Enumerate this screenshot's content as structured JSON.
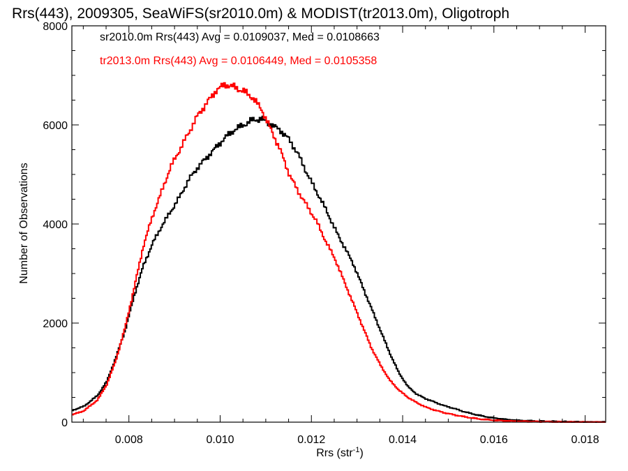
{
  "chart_data": {
    "type": "line",
    "title": "Rrs(443), 2009305, SeaWiFS(sr2010.0m) & MODIST(tr2013.0m), Oligotroph",
    "xlabel_base": "Rrs (str",
    "xlabel_sup": "-1",
    "xlabel_close": ")",
    "ylabel": "Number of Observations",
    "xlim": [
      0.00675,
      0.01845
    ],
    "ylim": [
      0,
      8000
    ],
    "x_ticks": [
      "0.008",
      "0.010",
      "0.012",
      "0.014",
      "0.016",
      "0.018"
    ],
    "x_tick_values": [
      0.008,
      0.01,
      0.012,
      0.014,
      0.016,
      0.018
    ],
    "y_ticks": [
      "0",
      "2000",
      "4000",
      "6000",
      "8000"
    ],
    "y_tick_values": [
      0,
      2000,
      4000,
      6000,
      8000
    ],
    "grid": false,
    "legend_position": "top-left",
    "series": [
      {
        "name": "sr2010.0m Rrs(443) Avg = 0.0109037, Med = 0.0108663",
        "color": "#000000",
        "points": [
          [
            0.00675,
            240
          ],
          [
            0.007,
            320
          ],
          [
            0.0073,
            540
          ],
          [
            0.0075,
            820
          ],
          [
            0.0077,
            1300
          ],
          [
            0.0079,
            1850
          ],
          [
            0.0081,
            2550
          ],
          [
            0.0083,
            3150
          ],
          [
            0.0085,
            3600
          ],
          [
            0.0087,
            3950
          ],
          [
            0.0089,
            4250
          ],
          [
            0.0091,
            4550
          ],
          [
            0.0093,
            4900
          ],
          [
            0.0095,
            5150
          ],
          [
            0.0097,
            5350
          ],
          [
            0.0099,
            5550
          ],
          [
            0.0101,
            5750
          ],
          [
            0.0103,
            5900
          ],
          [
            0.0105,
            6000
          ],
          [
            0.0107,
            6100
          ],
          [
            0.0109,
            6120
          ],
          [
            0.0111,
            6000
          ],
          [
            0.0113,
            5900
          ],
          [
            0.0115,
            5700
          ],
          [
            0.0117,
            5400
          ],
          [
            0.0119,
            5000
          ],
          [
            0.0121,
            4650
          ],
          [
            0.0123,
            4300
          ],
          [
            0.0125,
            3900
          ],
          [
            0.0127,
            3550
          ],
          [
            0.0129,
            3200
          ],
          [
            0.0131,
            2750
          ],
          [
            0.0133,
            2300
          ],
          [
            0.0135,
            1850
          ],
          [
            0.0137,
            1400
          ],
          [
            0.0139,
            1000
          ],
          [
            0.0141,
            720
          ],
          [
            0.0143,
            560
          ],
          [
            0.0145,
            470
          ],
          [
            0.0147,
            400
          ],
          [
            0.0149,
            330
          ],
          [
            0.0151,
            280
          ],
          [
            0.0153,
            220
          ],
          [
            0.0155,
            170
          ],
          [
            0.0157,
            130
          ],
          [
            0.0159,
            95
          ],
          [
            0.0161,
            70
          ],
          [
            0.0163,
            50
          ],
          [
            0.0165,
            35
          ],
          [
            0.017,
            18
          ],
          [
            0.0175,
            8
          ],
          [
            0.018,
            3
          ],
          [
            0.01845,
            1
          ]
        ]
      },
      {
        "name": "tr2013.0m Rrs(443) Avg = 0.0106449, Med = 0.0105358",
        "color": "#ff0000",
        "points": [
          [
            0.00675,
            150
          ],
          [
            0.007,
            230
          ],
          [
            0.0073,
            450
          ],
          [
            0.0075,
            760
          ],
          [
            0.0077,
            1250
          ],
          [
            0.0079,
            1900
          ],
          [
            0.0081,
            2700
          ],
          [
            0.0083,
            3550
          ],
          [
            0.0085,
            4150
          ],
          [
            0.0087,
            4650
          ],
          [
            0.0089,
            5150
          ],
          [
            0.0091,
            5500
          ],
          [
            0.0093,
            5850
          ],
          [
            0.0095,
            6200
          ],
          [
            0.0097,
            6450
          ],
          [
            0.0099,
            6700
          ],
          [
            0.0101,
            6820
          ],
          [
            0.0103,
            6760
          ],
          [
            0.0105,
            6680
          ],
          [
            0.0107,
            6550
          ],
          [
            0.0109,
            6300
          ],
          [
            0.0111,
            5900
          ],
          [
            0.0113,
            5500
          ],
          [
            0.0115,
            5000
          ],
          [
            0.0117,
            4650
          ],
          [
            0.0119,
            4350
          ],
          [
            0.0121,
            4050
          ],
          [
            0.0123,
            3650
          ],
          [
            0.0125,
            3300
          ],
          [
            0.0127,
            2850
          ],
          [
            0.0129,
            2400
          ],
          [
            0.0131,
            1950
          ],
          [
            0.0133,
            1500
          ],
          [
            0.0135,
            1150
          ],
          [
            0.0137,
            850
          ],
          [
            0.0139,
            650
          ],
          [
            0.0141,
            500
          ],
          [
            0.0143,
            390
          ],
          [
            0.0145,
            300
          ],
          [
            0.0147,
            240
          ],
          [
            0.0149,
            190
          ],
          [
            0.0151,
            150
          ],
          [
            0.0153,
            115
          ],
          [
            0.0155,
            85
          ],
          [
            0.0157,
            60
          ],
          [
            0.0159,
            45
          ],
          [
            0.0161,
            33
          ],
          [
            0.0163,
            24
          ],
          [
            0.0165,
            18
          ],
          [
            0.017,
            9
          ],
          [
            0.0175,
            4
          ],
          [
            0.018,
            2
          ],
          [
            0.01845,
            1
          ]
        ]
      }
    ]
  }
}
